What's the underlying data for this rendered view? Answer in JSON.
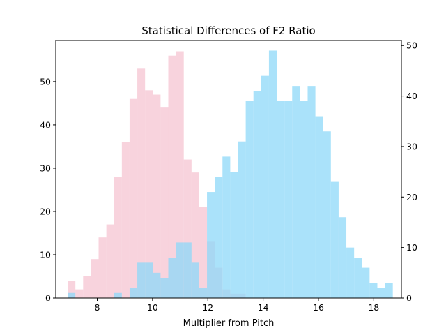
{
  "chart_data": {
    "type": "bar",
    "subtype": "overlaid-histogram",
    "title": "Statistical Differences of F2 Ratio",
    "xlabel": "Multiplier from Pitch",
    "ylabel_left": "",
    "ylabel_right": "",
    "xlim": [
      6.5,
      19.0
    ],
    "xticks": [
      8,
      10,
      12,
      14,
      16,
      18
    ],
    "grid": false,
    "legend": "none",
    "series": [
      {
        "color": "#f4b6c6",
        "opacity": 0.6,
        "axis": "left",
        "ylim": [
          0,
          59.5
        ],
        "yticks": [
          0,
          10,
          20,
          30,
          40,
          50
        ],
        "bin_width": 0.28,
        "x": [
          6.93,
          7.21,
          7.49,
          7.77,
          8.05,
          8.33,
          8.61,
          8.89,
          9.17,
          9.45,
          9.73,
          10.01,
          10.29,
          10.57,
          10.85,
          11.13,
          11.41,
          11.69,
          11.97,
          12.25,
          12.53,
          12.81,
          13.09
        ],
        "values": [
          4,
          2,
          5,
          9,
          14,
          17,
          28,
          36,
          46,
          53,
          48,
          47,
          44,
          56,
          57,
          32,
          29,
          21,
          13,
          7,
          2,
          1,
          1
        ]
      },
      {
        "color": "#8ed8f8",
        "opacity": 0.75,
        "axis": "right",
        "ylim": [
          0,
          51
        ],
        "yticks": [
          0,
          10,
          20,
          30,
          40,
          50
        ],
        "bin_width": 0.28,
        "x": [
          6.93,
          7.21,
          7.49,
          7.77,
          8.05,
          8.33,
          8.61,
          8.89,
          9.17,
          9.45,
          9.73,
          10.01,
          10.29,
          10.57,
          10.85,
          11.13,
          11.41,
          11.69,
          11.97,
          12.25,
          12.53,
          12.81,
          13.09,
          13.37,
          13.65,
          13.93,
          14.21,
          14.49,
          14.77,
          15.05,
          15.33,
          15.61,
          15.89,
          16.17,
          16.45,
          16.73,
          17.01,
          17.29,
          17.57,
          17.85,
          18.13,
          18.41
        ],
        "values": [
          1,
          0,
          0,
          0,
          0,
          0,
          1,
          0,
          2,
          7,
          7,
          5,
          4,
          8,
          11,
          11,
          7,
          2,
          21,
          24,
          28,
          25,
          31,
          39,
          41,
          44,
          49,
          39,
          39,
          42,
          39,
          42,
          36,
          33,
          23,
          16,
          10,
          8,
          6,
          3,
          2,
          3
        ]
      }
    ]
  }
}
